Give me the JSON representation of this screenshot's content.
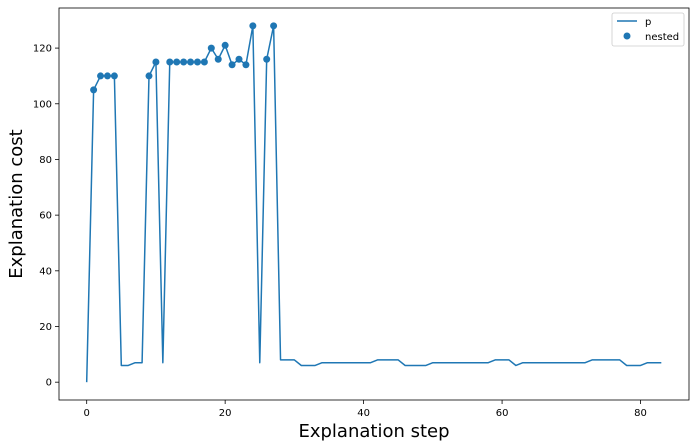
{
  "chart_data": {
    "type": "line",
    "xlabel": "Explanation step",
    "ylabel": "Explanation cost",
    "xlim": [
      -4,
      87
    ],
    "ylim": [
      -6.4,
      134.4
    ],
    "xticks": [
      0,
      20,
      40,
      60,
      80
    ],
    "yticks": [
      0,
      20,
      40,
      60,
      80,
      100,
      120
    ],
    "grid": false,
    "legend_position": "top-right",
    "color": "#1f77b4",
    "series": [
      {
        "name": "p",
        "kind": "line",
        "x": [
          0,
          1,
          2,
          3,
          4,
          5,
          6,
          7,
          8,
          9,
          10,
          11,
          12,
          13,
          14,
          15,
          16,
          17,
          18,
          19,
          20,
          21,
          22,
          23,
          24,
          25,
          26,
          27,
          28,
          29,
          30,
          31,
          32,
          33,
          34,
          35,
          36,
          37,
          38,
          39,
          40,
          41,
          42,
          43,
          44,
          45,
          46,
          47,
          48,
          49,
          50,
          51,
          52,
          53,
          54,
          55,
          56,
          57,
          58,
          59,
          60,
          61,
          62,
          63,
          64,
          65,
          66,
          67,
          68,
          69,
          70,
          71,
          72,
          73,
          74,
          75,
          76,
          77,
          78,
          79,
          80,
          81,
          82,
          83
        ],
        "y": [
          0,
          105,
          110,
          110,
          110,
          6,
          6,
          7,
          7,
          110,
          115,
          7,
          115,
          115,
          115,
          115,
          115,
          115,
          120,
          116,
          121,
          114,
          116,
          114,
          128,
          7,
          116,
          128,
          8,
          8,
          8,
          6,
          6,
          6,
          7,
          7,
          7,
          7,
          7,
          7,
          7,
          7,
          8,
          8,
          8,
          8,
          6,
          6,
          6,
          6,
          7,
          7,
          7,
          7,
          7,
          7,
          7,
          7,
          7,
          8,
          8,
          8,
          6,
          7,
          7,
          7,
          7,
          7,
          7,
          7,
          7,
          7,
          7,
          8,
          8,
          8,
          8,
          8,
          6,
          6,
          6,
          7,
          7,
          7
        ]
      },
      {
        "name": "nested",
        "kind": "scatter",
        "x": [
          1,
          2,
          3,
          4,
          9,
          10,
          12,
          13,
          14,
          15,
          16,
          17,
          18,
          19,
          20,
          21,
          22,
          23,
          24,
          26,
          27
        ],
        "y": [
          105,
          110,
          110,
          110,
          110,
          115,
          115,
          115,
          115,
          115,
          115,
          115,
          120,
          116,
          121,
          114,
          116,
          114,
          128,
          116,
          128
        ]
      }
    ]
  }
}
